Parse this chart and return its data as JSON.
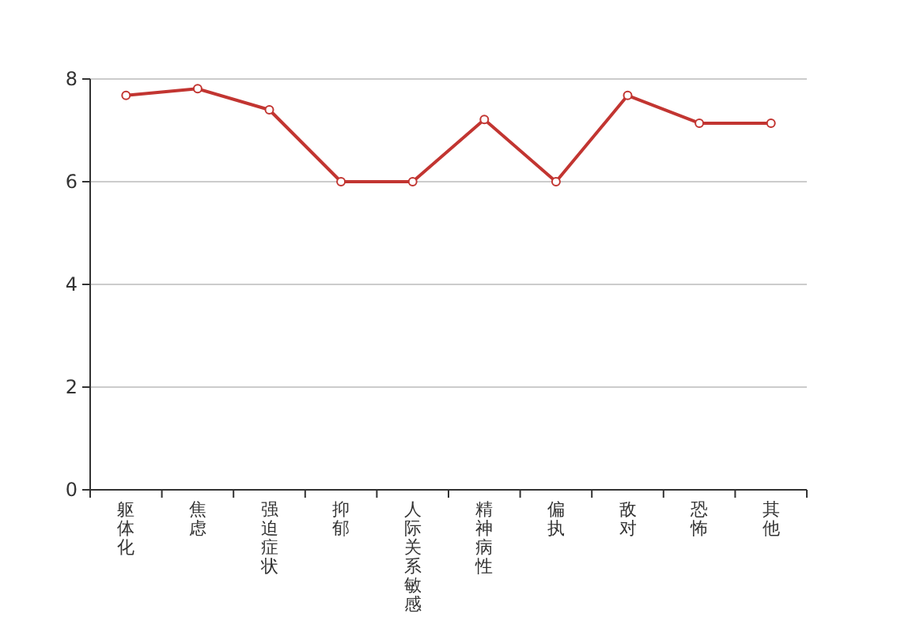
{
  "chart_data": {
    "type": "line",
    "categories": [
      "躯体化",
      "焦虑",
      "强迫症状",
      "抑郁",
      "人际关系敏感",
      "精神病性",
      "偏执",
      "敌对",
      "恐怖",
      "其他"
    ],
    "series": [
      {
        "color": "#c23531",
        "values": [
          7.68,
          7.81,
          7.4,
          6,
          6,
          7.21,
          6,
          7.68,
          7.14,
          7.14
        ]
      }
    ],
    "ylim": [
      0,
      8
    ],
    "yticks": [
      0,
      2,
      4,
      6,
      8
    ],
    "grid": "y",
    "marker": "circle",
    "line_style": "solid"
  }
}
